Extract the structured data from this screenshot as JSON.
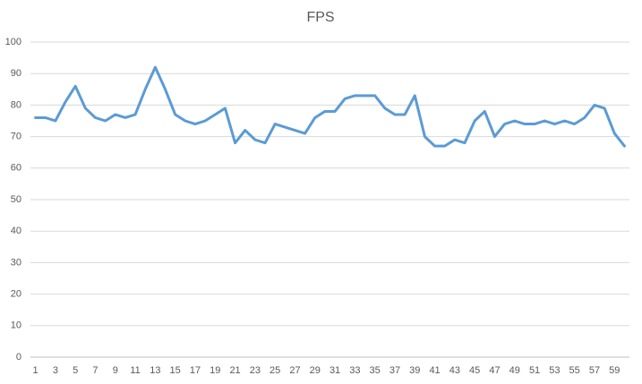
{
  "chart_data": {
    "type": "line",
    "title": "FPS",
    "categories": [
      1,
      null,
      3,
      null,
      5,
      null,
      7,
      null,
      9,
      null,
      11,
      null,
      13,
      null,
      15,
      null,
      17,
      null,
      19,
      null,
      21,
      null,
      23,
      null,
      25,
      null,
      27,
      null,
      29,
      null,
      31,
      null,
      33,
      null,
      35,
      null,
      37,
      null,
      39,
      null,
      41,
      null,
      43,
      null,
      45,
      null,
      47,
      null,
      49,
      null,
      51,
      null,
      53,
      null,
      55,
      null,
      57,
      null,
      59,
      null
    ],
    "series": [
      {
        "name": "FPS",
        "color": "#5b9bd5",
        "values": [
          76,
          76,
          75,
          81,
          86,
          79,
          76,
          75,
          77,
          76,
          77,
          85,
          92,
          85,
          77,
          75,
          74,
          75,
          77,
          79,
          68,
          72,
          69,
          68,
          74,
          73,
          72,
          71,
          76,
          78,
          78,
          82,
          83,
          83,
          83,
          79,
          77,
          77,
          83,
          70,
          67,
          67,
          69,
          68,
          75,
          78,
          70,
          74,
          75,
          74,
          74,
          75,
          74,
          75,
          74,
          76,
          80,
          79,
          71,
          67
        ]
      }
    ],
    "ylim": [
      0,
      100
    ],
    "yticks": [
      0,
      10,
      20,
      30,
      40,
      50,
      60,
      70,
      80,
      90,
      100
    ],
    "grid": true
  }
}
